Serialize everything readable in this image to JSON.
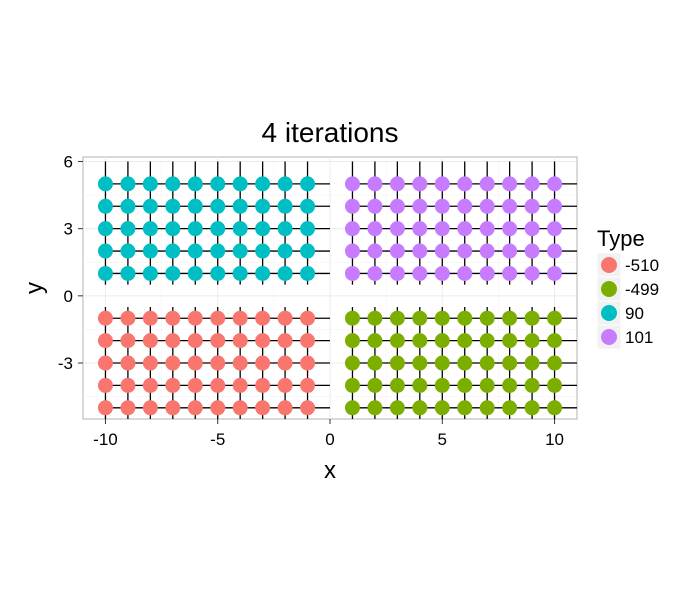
{
  "chart_data": {
    "type": "scatter",
    "title": "4 iterations",
    "xlabel": "x",
    "ylabel": "y",
    "xlim": [
      -11,
      11
    ],
    "ylim": [
      -5.5,
      6.2
    ],
    "x_ticks": [
      -10,
      -5,
      0,
      5,
      10
    ],
    "x_tick_labels": [
      "-10",
      "-5",
      "0",
      "5",
      "10"
    ],
    "y_ticks": [
      -3,
      0,
      3,
      6
    ],
    "y_tick_labels": [
      "-3",
      "0",
      "3",
      "6"
    ],
    "grid": true,
    "legend": {
      "title": "Type",
      "placement": "right"
    },
    "series": [
      {
        "name": "-510",
        "color": "#F8766D",
        "x_range": [
          -10,
          -1
        ],
        "y_range": [
          -5,
          -1
        ]
      },
      {
        "name": "-499",
        "color": "#7CAE00",
        "x_range": [
          1,
          10
        ],
        "y_range": [
          -5,
          -1
        ]
      },
      {
        "name": "90",
        "color": "#00BFC4",
        "x_range": [
          -10,
          -1
        ],
        "y_range": [
          1,
          5
        ]
      },
      {
        "name": "101",
        "color": "#C77CFF",
        "x_range": [
          1,
          10
        ],
        "y_range": [
          1,
          5
        ]
      }
    ],
    "segments": [
      {
        "x_range": [
          -10,
          -1
        ],
        "y_range": [
          1,
          5
        ],
        "h_extent": [
          -10,
          0
        ],
        "v_extent": [
          0.5,
          6
        ]
      },
      {
        "x_range": [
          1,
          10
        ],
        "y_range": [
          1,
          5
        ],
        "h_extent": [
          1,
          11
        ],
        "v_extent": [
          0.5,
          6
        ]
      },
      {
        "x_range": [
          -10,
          -1
        ],
        "y_range": [
          -5,
          -1
        ],
        "h_extent": [
          -10,
          0
        ],
        "v_extent": [
          -5.5,
          -0.5
        ]
      },
      {
        "x_range": [
          1,
          10
        ],
        "y_range": [
          -5,
          -1
        ],
        "h_extent": [
          1,
          11
        ],
        "v_extent": [
          -5.5,
          -0.5
        ]
      }
    ]
  }
}
